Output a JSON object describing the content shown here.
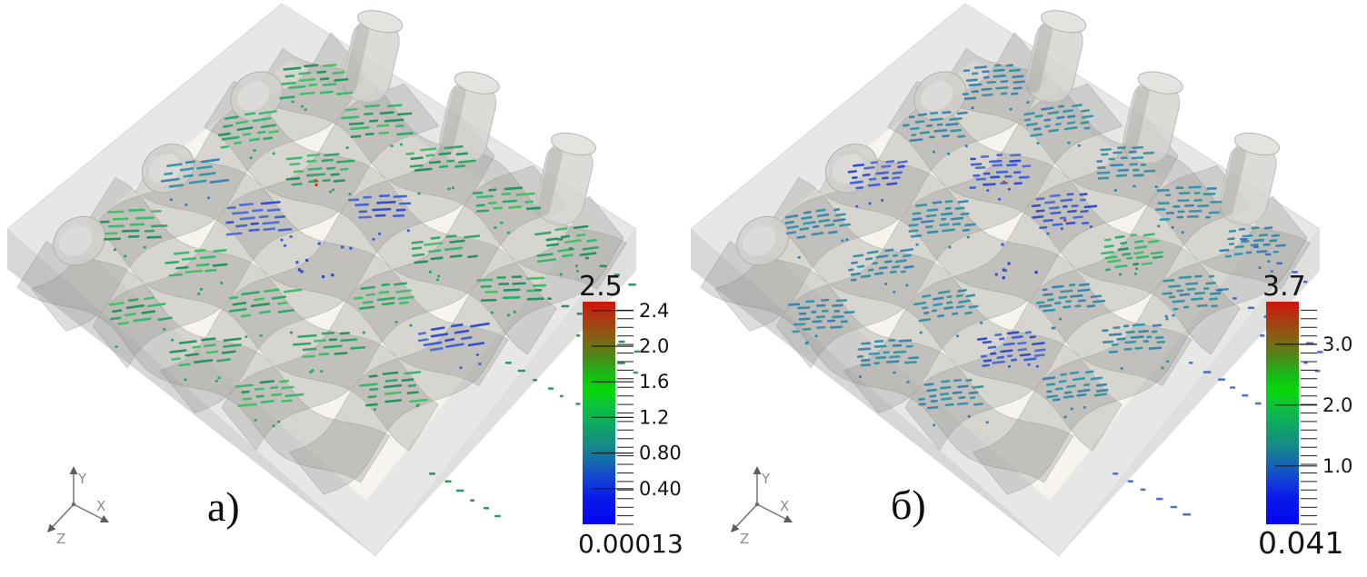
{
  "app": {
    "type": "3d-flow-visualization-figure",
    "background": "#ffffff"
  },
  "figure": {
    "panels": [
      {
        "id": "a",
        "label": "а)",
        "axes_labels": {
          "x": "X",
          "y": "Y",
          "z": "Z"
        },
        "colorbar": {
          "max_label": "2.5",
          "min_label": "0.00013",
          "vmax": 2.5,
          "vmin": 0.00013,
          "major_ticks": [
            {
              "value": 2.4,
              "label": "2.4"
            },
            {
              "value": 2.0,
              "label": "2.0"
            },
            {
              "value": 1.6,
              "label": "1.6"
            },
            {
              "value": 1.2,
              "label": "1.2"
            },
            {
              "value": 0.8,
              "label": "0.80"
            },
            {
              "value": 0.4,
              "label": "0.40"
            }
          ]
        },
        "glyphs": {
          "dominant": "green",
          "dense": false,
          "trail_color": "trail_green",
          "clusters": [
            {
              "i": -2,
              "j": -2,
              "c": "green"
            },
            {
              "i": -1,
              "j": -2,
              "c": "green"
            },
            {
              "i": 0,
              "j": -2,
              "c": "green"
            },
            {
              "i": 1,
              "j": -2,
              "c": "green"
            },
            {
              "i": 2,
              "j": -2,
              "c": "green"
            },
            {
              "i": -2,
              "j": -1,
              "c": "green"
            },
            {
              "i": -1,
              "j": -1,
              "c": "green"
            },
            {
              "i": 0,
              "j": -1,
              "c": "blue"
            },
            {
              "i": 1,
              "j": -1,
              "c": "green"
            },
            {
              "i": 2,
              "j": -1,
              "c": "green"
            },
            {
              "i": -2,
              "j": 0,
              "c": "teal"
            },
            {
              "i": -1,
              "j": 0,
              "c": "blue"
            },
            {
              "i": 0,
              "j": 0,
              "c": "blue",
              "sparse": true
            },
            {
              "i": 1,
              "j": 0,
              "c": "green"
            },
            {
              "i": 2,
              "j": 0,
              "c": "blue"
            },
            {
              "i": -2,
              "j": 1,
              "c": "green"
            },
            {
              "i": -1,
              "j": 1,
              "c": "green"
            },
            {
              "i": 0,
              "j": 1,
              "c": "green"
            },
            {
              "i": 1,
              "j": 1,
              "c": "green"
            },
            {
              "i": 2,
              "j": 1,
              "c": "green"
            },
            {
              "i": -1,
              "j": 2,
              "c": "green"
            },
            {
              "i": 0,
              "j": 2,
              "c": "green"
            },
            {
              "i": 1,
              "j": 2,
              "c": "green"
            }
          ]
        }
      },
      {
        "id": "b",
        "label": "б)",
        "axes_labels": {
          "x": "X",
          "y": "Y",
          "z": "Z"
        },
        "colorbar": {
          "max_label": "3.7",
          "min_label": "0.041",
          "vmax": 3.7,
          "vmin": 0.041,
          "major_ticks": [
            {
              "value": 3.0,
              "label": "3.0"
            },
            {
              "value": 2.0,
              "label": "2.0"
            },
            {
              "value": 1.0,
              "label": "1.0"
            }
          ]
        },
        "glyphs": {
          "dominant": "teal",
          "dense": true,
          "trail_color": "trail_blue",
          "clusters": [
            {
              "i": -2,
              "j": -2,
              "c": "teal"
            },
            {
              "i": -1,
              "j": -2,
              "c": "teal"
            },
            {
              "i": 0,
              "j": -2,
              "c": "teal"
            },
            {
              "i": 1,
              "j": -2,
              "c": "teal"
            },
            {
              "i": 2,
              "j": -2,
              "c": "teal"
            },
            {
              "i": -2,
              "j": -1,
              "c": "teal"
            },
            {
              "i": -1,
              "j": -1,
              "c": "blue"
            },
            {
              "i": 0,
              "j": -1,
              "c": "blue"
            },
            {
              "i": 1,
              "j": -1,
              "c": "green"
            },
            {
              "i": 2,
              "j": -1,
              "c": "teal"
            },
            {
              "i": -2,
              "j": 0,
              "c": "blue"
            },
            {
              "i": -1,
              "j": 0,
              "c": "teal"
            },
            {
              "i": 0,
              "j": 0,
              "c": "blue",
              "sparse": true
            },
            {
              "i": 1,
              "j": 0,
              "c": "teal"
            },
            {
              "i": 2,
              "j": 0,
              "c": "teal"
            },
            {
              "i": -2,
              "j": 1,
              "c": "teal"
            },
            {
              "i": -1,
              "j": 1,
              "c": "teal"
            },
            {
              "i": 0,
              "j": 1,
              "c": "teal"
            },
            {
              "i": 1,
              "j": 1,
              "c": "blue"
            },
            {
              "i": 2,
              "j": 1,
              "c": "teal"
            },
            {
              "i": -1,
              "j": 2,
              "c": "teal"
            },
            {
              "i": 0,
              "j": 2,
              "c": "teal"
            },
            {
              "i": 1,
              "j": 2,
              "c": "teal"
            }
          ]
        }
      }
    ],
    "colormap_stops": [
      [
        0.0,
        "#d01410"
      ],
      [
        0.08,
        "#ab3c10"
      ],
      [
        0.17,
        "#7f6414"
      ],
      [
        0.26,
        "#43911a"
      ],
      [
        0.33,
        "#17bb16"
      ],
      [
        0.4,
        "#06d80a"
      ],
      [
        0.48,
        "#0bbf44"
      ],
      [
        0.56,
        "#10a566"
      ],
      [
        0.64,
        "#148c84"
      ],
      [
        0.72,
        "#1668b0"
      ],
      [
        0.8,
        "#1240d6"
      ],
      [
        0.88,
        "#0a1ae8"
      ],
      [
        1.0,
        "#0505f0"
      ]
    ],
    "glyph_palettes": {
      "green": [
        "#2aa562",
        "#33b968",
        "#1f9158",
        "#40c060"
      ],
      "teal": [
        "#3487a8",
        "#2f93b0",
        "#3a7fae",
        "#35919e"
      ],
      "blue": [
        "#3a5ed8",
        "#2b49cc",
        "#4b6ad2"
      ],
      "trail_green": [
        "#1f8a58"
      ],
      "trail_blue": [
        "#3b63c8"
      ]
    }
  },
  "chart_data": [
    {
      "type": "3d_vector_field",
      "panel_label": "а)",
      "scene": "translucent plain-weave yarn unit cell inside translucent box, velocity vector glyph clusters at yarn crossovers",
      "colorbar": {
        "orientation": "vertical",
        "max": 2.5,
        "min": 0.00013,
        "max_label": "2.5",
        "min_label": "0.00013",
        "major_ticks": [
          2.4,
          2.0,
          1.6,
          1.2,
          0.8,
          0.4
        ],
        "tick_labels": [
          "2.4",
          "2.0",
          "1.6",
          "1.2",
          "0.80",
          "0.40"
        ],
        "colormap": "blue (min) -> teal -> green -> olive -> red (max)"
      },
      "axes_triad": [
        "X",
        "Y",
        "Z"
      ],
      "glyph_color_trend": "mostly medium green with a few teal/blue clusters"
    },
    {
      "type": "3d_vector_field",
      "panel_label": "б)",
      "scene": "same woven unit cell geometry as panel а)",
      "colorbar": {
        "orientation": "vertical",
        "max": 3.7,
        "min": 0.041,
        "max_label": "3.7",
        "min_label": "0.041",
        "major_ticks": [
          3.0,
          2.0,
          1.0
        ],
        "tick_labels": [
          "3.0",
          "2.0",
          "1.0"
        ],
        "colormap": "blue (min) -> teal -> green -> olive -> red (max)"
      },
      "axes_triad": [
        "X",
        "Y",
        "Z"
      ],
      "glyph_color_trend": "mostly teal/steel-blue clusters with occasional green"
    }
  ]
}
